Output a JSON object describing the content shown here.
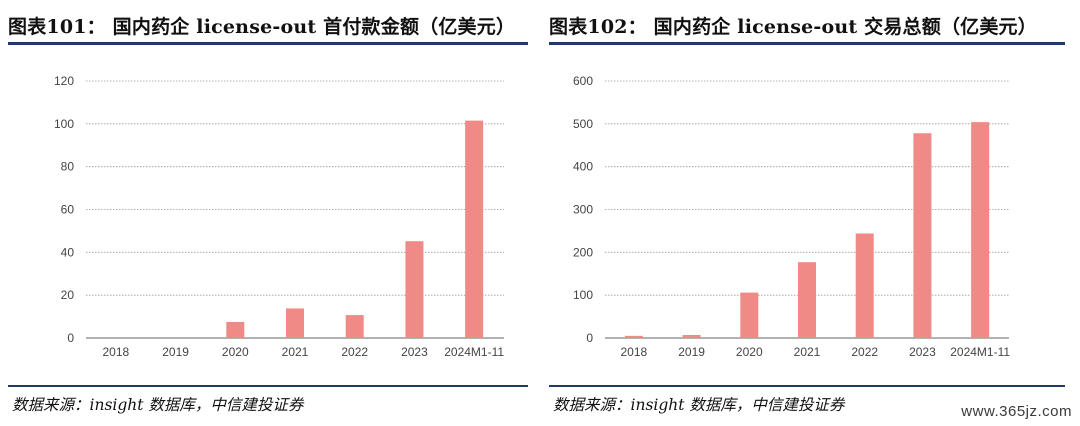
{
  "panels": [
    {
      "title": "图表101： 国内药企 license-out 首付款金额（亿美元）",
      "source": "数据来源：insight 数据库，中信建投证券",
      "chart_data": {
        "type": "bar",
        "title": "国内药企 license-out 首付款金额（亿美元）",
        "categories": [
          "2018",
          "2019",
          "2020",
          "2021",
          "2022",
          "2023",
          "2024M1-11"
        ],
        "values": [
          0,
          0,
          7.5,
          13.8,
          10.7,
          45.2,
          101.5
        ],
        "ylim": [
          0,
          120
        ],
        "yticks": [
          0,
          20,
          40,
          60,
          80,
          100,
          120
        ],
        "xlabel": "",
        "ylabel": "",
        "grid": true,
        "bar_color": "#f08a87"
      }
    },
    {
      "title": "图表102： 国内药企 license-out 交易总额（亿美元）",
      "source": "数据来源：insight 数据库，中信建投证券",
      "chart_data": {
        "type": "bar",
        "title": "国内药企 license-out 交易总额（亿美元）",
        "categories": [
          "2018",
          "2019",
          "2020",
          "2021",
          "2022",
          "2023",
          "2024M1-11"
        ],
        "values": [
          5,
          7,
          106,
          177,
          244,
          478,
          504
        ],
        "ylim": [
          0,
          600
        ],
        "yticks": [
          0,
          100,
          200,
          300,
          400,
          500,
          600
        ],
        "xlabel": "",
        "ylabel": "",
        "grid": true,
        "bar_color": "#f08a87"
      }
    }
  ],
  "watermark": "www.365jz.com",
  "colors": {
    "rule": "#1f3a63",
    "grid": "#9a9a9a",
    "bar": "#f08a87"
  }
}
